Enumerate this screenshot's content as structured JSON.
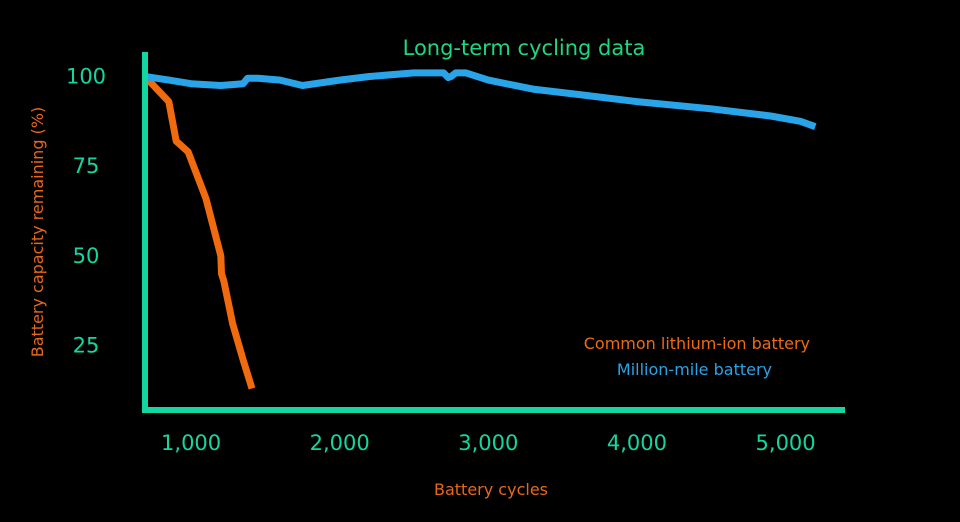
{
  "chart_data": {
    "type": "line",
    "title": "Long-term cycling data",
    "xlabel": "Battery cycles",
    "ylabel": "Battery capacity remaining (%)",
    "xlim": [
      690,
      5400
    ],
    "ylim": [
      7,
      106
    ],
    "xticks": [
      {
        "value": 1000,
        "label": "1,000"
      },
      {
        "value": 2000,
        "label": "2,000"
      },
      {
        "value": 3000,
        "label": "3,000"
      },
      {
        "value": 4000,
        "label": "4,000"
      },
      {
        "value": 5000,
        "label": "5,000"
      }
    ],
    "yticks": [
      {
        "value": 100,
        "label": "100"
      },
      {
        "value": 75,
        "label": "75"
      },
      {
        "value": 50,
        "label": "50"
      },
      {
        "value": 25,
        "label": "25"
      }
    ],
    "grid": false,
    "legend": "right",
    "colors": {
      "title": "#1FD67E",
      "axes": "#14D6A0",
      "ticks": "#14D6A0",
      "axis_labels": "#E8681A",
      "common": "#F06A10",
      "million": "#2AA4E8"
    },
    "series": [
      {
        "name": "Common lithium-ion battery",
        "color": "#F06A10",
        "x": [
          690,
          850,
          900,
          980,
          1100,
          1200,
          1205,
          1220,
          1280,
          1350,
          1410
        ],
        "y": [
          100,
          93,
          82,
          79,
          66,
          50,
          45,
          43,
          31,
          21,
          13
        ]
      },
      {
        "name": "Million-mile battery",
        "color": "#2AA4E8",
        "x": [
          690,
          850,
          1000,
          1200,
          1350,
          1380,
          1450,
          1600,
          1750,
          2000,
          2200,
          2500,
          2700,
          2730,
          2750,
          2780,
          2850,
          3000,
          3300,
          3600,
          4000,
          4500,
          4900,
          5100,
          5200
        ],
        "y": [
          100,
          99,
          98,
          97.5,
          98,
          99.5,
          99.5,
          99,
          97.5,
          99,
          100,
          101,
          101,
          99.7,
          100,
          101,
          101,
          99,
          96.5,
          95,
          93,
          91,
          89,
          87.5,
          86
        ]
      }
    ]
  }
}
